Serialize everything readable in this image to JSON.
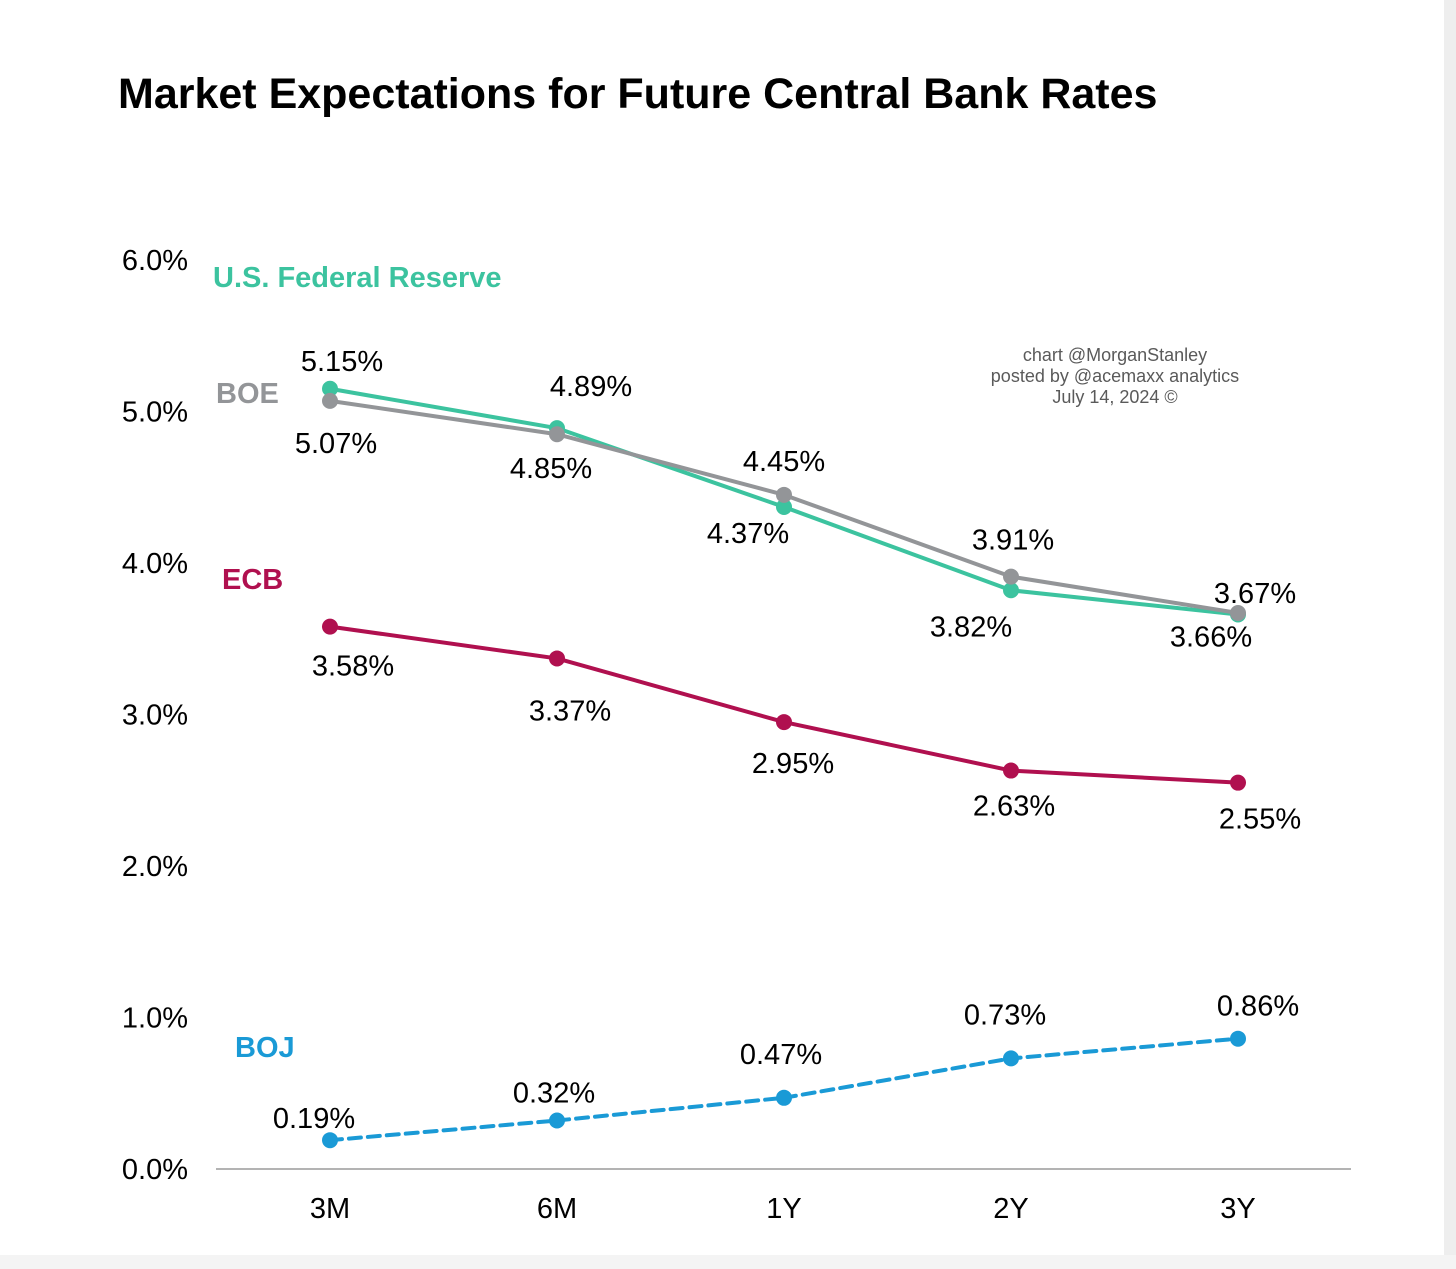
{
  "title": "Market Expectations for Future Central Bank Rates",
  "credit": {
    "line1": "chart @MorganStanley",
    "line2": "posted by @acemaxx analytics",
    "line3": "July 14, 2024 ©"
  },
  "chart_data": {
    "type": "line",
    "title": "Market Expectations for Future Central Bank Rates",
    "xlabel": "",
    "ylabel": "",
    "categories": [
      "3M",
      "6M",
      "1Y",
      "2Y",
      "3Y"
    ],
    "ylim": [
      0,
      6
    ],
    "yticks": [
      0,
      1,
      2,
      3,
      4,
      5,
      6
    ],
    "ytick_labels": [
      "0.0%",
      "1.0%",
      "2.0%",
      "3.0%",
      "4.0%",
      "5.0%",
      "6.0%"
    ],
    "grid": false,
    "legend": "inline labels at left",
    "series": [
      {
        "name": "U.S. Federal Reserve",
        "color": "#3cc39f",
        "dashed": false,
        "values": [
          5.15,
          4.89,
          4.37,
          3.82,
          3.66
        ],
        "labels": [
          "5.15%",
          "4.89%",
          "4.37%",
          "3.82%",
          "3.66%"
        ],
        "label_position": [
          "above",
          "above",
          "below",
          "below",
          "below"
        ]
      },
      {
        "name": "BOE",
        "color": "#939598",
        "dashed": false,
        "values": [
          5.07,
          4.85,
          4.45,
          3.91,
          3.67
        ],
        "labels": [
          "5.07%",
          "4.85%",
          "4.45%",
          "3.91%",
          "3.67%"
        ],
        "label_position": [
          "below",
          "below",
          "above",
          "above",
          "above"
        ]
      },
      {
        "name": "ECB",
        "color": "#b0104f",
        "dashed": false,
        "values": [
          3.58,
          3.37,
          2.95,
          2.63,
          2.55
        ],
        "labels": [
          "3.58%",
          "3.37%",
          "2.95%",
          "2.63%",
          "2.55%"
        ],
        "label_position": [
          "below",
          "below",
          "below",
          "below",
          "below"
        ]
      },
      {
        "name": "BOJ",
        "color": "#1a9ad6",
        "dashed": true,
        "values": [
          0.19,
          0.32,
          0.47,
          0.73,
          0.86
        ],
        "labels": [
          "0.19%",
          "0.32%",
          "0.47%",
          "0.73%",
          "0.86%"
        ],
        "label_position": [
          "above",
          "above",
          "above",
          "above",
          "above"
        ]
      }
    ]
  }
}
